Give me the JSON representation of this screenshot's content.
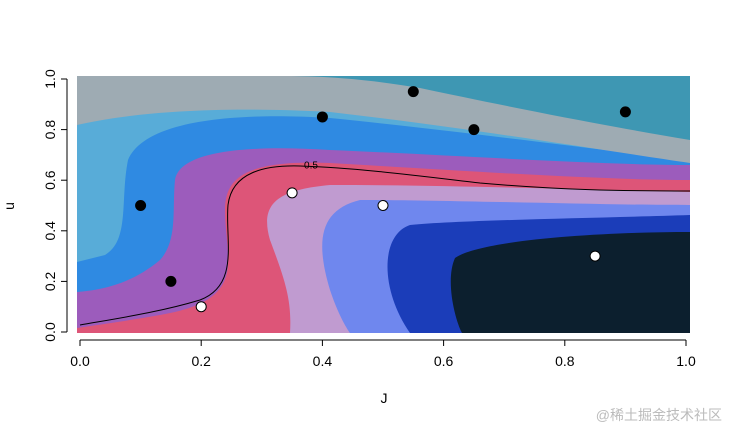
{
  "chart_data": {
    "type": "scatter",
    "xlabel": "J",
    "ylabel": "u",
    "contour_label": "0.5",
    "xlim": [
      0,
      1
    ],
    "ylim": [
      0,
      1
    ],
    "xticks": [
      {
        "value": 0,
        "label": "0.0"
      },
      {
        "value": 0.2,
        "label": "0.2"
      },
      {
        "value": 0.4,
        "label": "0.4"
      },
      {
        "value": 0.6,
        "label": "0.6"
      },
      {
        "value": 0.8,
        "label": "0.8"
      },
      {
        "value": 1,
        "label": "1.0"
      }
    ],
    "yticks": [
      {
        "value": 0,
        "label": "0.0"
      },
      {
        "value": 0.2,
        "label": "0.2"
      },
      {
        "value": 0.4,
        "label": "0.4"
      },
      {
        "value": 0.6,
        "label": "0.6"
      },
      {
        "value": 0.8,
        "label": "0.8"
      },
      {
        "value": 1,
        "label": "1.0"
      }
    ],
    "series": [
      {
        "color": "#000000",
        "x": [
          0.1,
          0.15,
          0.4,
          0.55,
          0.65,
          0.9
        ],
        "values": [
          0.5,
          0.2,
          0.85,
          0.95,
          0.8,
          0.87
        ]
      },
      {
        "color": "#ffffff",
        "x": [
          0.2,
          0.35,
          0.5,
          0.85
        ],
        "values": [
          0.1,
          0.55,
          0.5,
          0.3
        ]
      }
    ]
  },
  "watermark": "@稀土掘金技术社区"
}
